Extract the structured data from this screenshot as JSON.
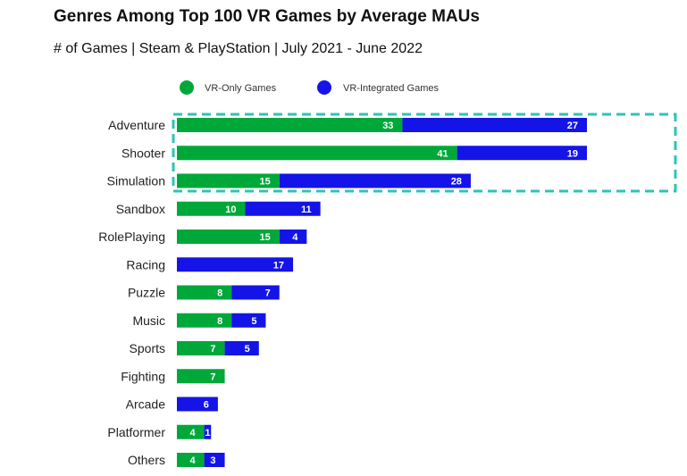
{
  "chart_data": {
    "type": "bar",
    "orientation": "horizontal",
    "stacked": true,
    "title": "Genres Among Top 100 VR Games by Average MAUs",
    "subtitle": "# of Games | Steam & PlayStation | July 2021 - June 2022",
    "categories": [
      "Adventure",
      "Shooter",
      "Simulation",
      "Sandbox",
      "RolePlaying",
      "Racing",
      "Puzzle",
      "Music",
      "Sports",
      "Fighting",
      "Arcade",
      "Platformer",
      "Others"
    ],
    "series": [
      {
        "name": "VR-Only Games",
        "color": "#00a83a",
        "values": [
          33,
          41,
          15,
          10,
          15,
          0,
          8,
          8,
          7,
          7,
          0,
          4,
          4
        ]
      },
      {
        "name": "VR-Integrated Games",
        "color": "#1414e6",
        "values": [
          27,
          19,
          28,
          11,
          4,
          17,
          7,
          5,
          5,
          0,
          6,
          1,
          3
        ]
      }
    ],
    "legend": "top",
    "grid": false,
    "highlight": {
      "categories": [
        "Adventure",
        "Shooter",
        "Simulation"
      ],
      "color": "#2ec4b6",
      "style": "dashed"
    }
  }
}
